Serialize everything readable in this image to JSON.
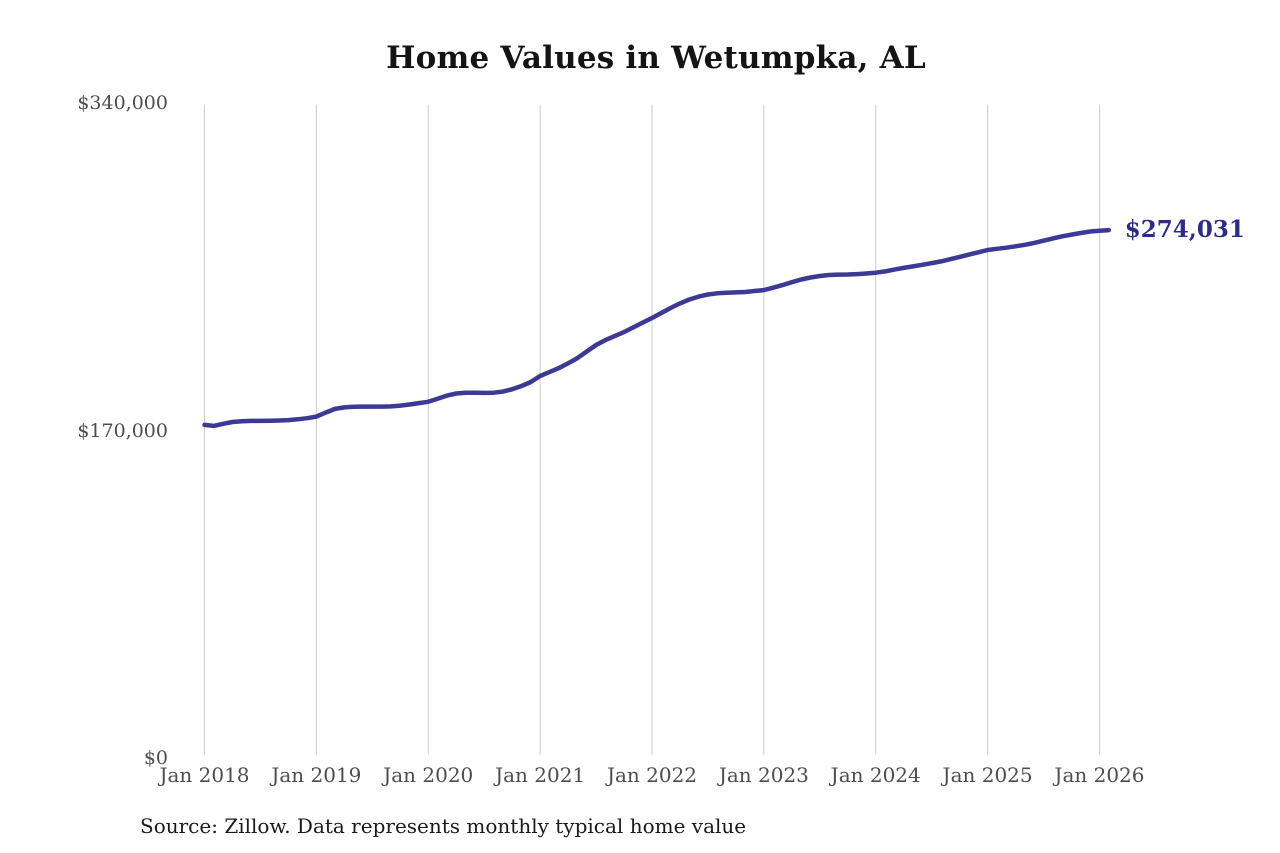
{
  "title": "Home Values in Wetumpka, AL",
  "source_note": "Source: Zillow. Data represents monthly typical home value",
  "end_label": "$274,031",
  "colors": {
    "line": "#3d3a96",
    "end_label": "#2d2b86",
    "grid": "#cccccc",
    "axis_text": "#4d4d4d",
    "title_text": "#141414",
    "source_text": "#1a1a1a",
    "background": "#ffffff"
  },
  "y_axis": {
    "ticks": [
      {
        "label": "$0",
        "value": 0
      },
      {
        "label": "$170,000",
        "value": 170000
      },
      {
        "label": "$340,000",
        "value": 340000
      }
    ]
  },
  "x_axis": {
    "ticks": [
      "Jan 2018",
      "Jan 2019",
      "Jan 2020",
      "Jan 2021",
      "Jan 2022",
      "Jan 2023",
      "Jan 2024",
      "Jan 2025",
      "Jan 2026"
    ],
    "months_per_tick": 12
  },
  "chart_data": {
    "type": "line",
    "title": "Home Values in Wetumpka, AL",
    "series_name": "Monthly typical home value (Zillow)",
    "xlabel": "",
    "ylabel": "",
    "ylim": [
      0,
      340000
    ],
    "grid": "vertical-only",
    "legend": "none",
    "final_value_label": "$274,031",
    "x": [
      "2018-01",
      "2018-02",
      "2018-03",
      "2018-04",
      "2018-05",
      "2018-06",
      "2018-07",
      "2018-08",
      "2018-09",
      "2018-10",
      "2018-11",
      "2018-12",
      "2019-01",
      "2019-02",
      "2019-03",
      "2019-04",
      "2019-05",
      "2019-06",
      "2019-07",
      "2019-08",
      "2019-09",
      "2019-10",
      "2019-11",
      "2019-12",
      "2020-01",
      "2020-02",
      "2020-03",
      "2020-04",
      "2020-05",
      "2020-06",
      "2020-07",
      "2020-08",
      "2020-09",
      "2020-10",
      "2020-11",
      "2020-12",
      "2021-01",
      "2021-02",
      "2021-03",
      "2021-04",
      "2021-05",
      "2021-06",
      "2021-07",
      "2021-08",
      "2021-09",
      "2021-10",
      "2021-11",
      "2021-12",
      "2022-01",
      "2022-02",
      "2022-03",
      "2022-04",
      "2022-05",
      "2022-06",
      "2022-07",
      "2022-08",
      "2022-09",
      "2022-10",
      "2022-11",
      "2022-12",
      "2023-01",
      "2023-02",
      "2023-03",
      "2023-04",
      "2023-05",
      "2023-06",
      "2023-07",
      "2023-08",
      "2023-09",
      "2023-10",
      "2023-11",
      "2023-12",
      "2024-01",
      "2024-02",
      "2024-03",
      "2024-04",
      "2024-05",
      "2024-06",
      "2024-07",
      "2024-08",
      "2024-09",
      "2024-10",
      "2024-11",
      "2024-12",
      "2025-01",
      "2025-02",
      "2025-03",
      "2025-04",
      "2025-05",
      "2025-06",
      "2025-07",
      "2025-08",
      "2025-09",
      "2025-10",
      "2025-11",
      "2025-12",
      "2026-01",
      "2026-02"
    ],
    "values": [
      172900,
      172400,
      173500,
      174400,
      174800,
      175000,
      175000,
      175100,
      175200,
      175400,
      175800,
      176400,
      177200,
      179300,
      181200,
      182000,
      182300,
      182400,
      182400,
      182400,
      182500,
      182900,
      183500,
      184200,
      184900,
      186500,
      188100,
      189200,
      189600,
      189600,
      189500,
      189600,
      190200,
      191400,
      193100,
      195200,
      198300,
      200300,
      202400,
      204900,
      207600,
      211000,
      214400,
      216900,
      219000,
      221100,
      223500,
      226000,
      228400,
      231000,
      233600,
      236000,
      238000,
      239500,
      240600,
      241200,
      241500,
      241700,
      241900,
      242400,
      242900,
      244100,
      245500,
      247000,
      248400,
      249400,
      250200,
      250700,
      250900,
      251000,
      251200,
      251500,
      251900,
      252600,
      253500,
      254400,
      255200,
      256000,
      256900,
      257800,
      258900,
      260100,
      261300,
      262500,
      263700,
      264300,
      264900,
      265600,
      266400,
      267400,
      268500,
      269700,
      270800,
      271700,
      272500,
      273300,
      273700,
      274031
    ]
  }
}
